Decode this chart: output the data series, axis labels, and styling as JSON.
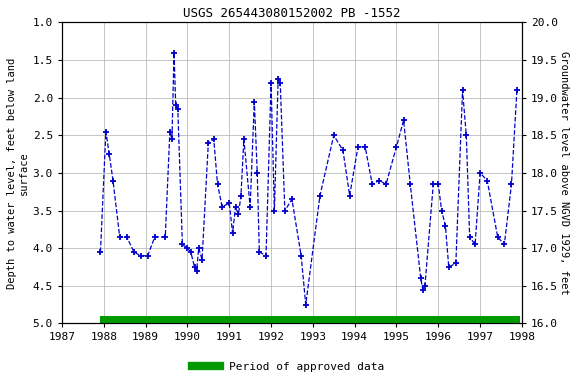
{
  "title": "USGS 265443080152002 PB -1552",
  "ylabel_left": "Depth to water level, feet below land\nsurface",
  "ylabel_right": "Groundwater level above NGVD 1929, feet",
  "xlim": [
    1987,
    1998
  ],
  "ylim_left": [
    5.0,
    1.0
  ],
  "ylim_right": [
    16.0,
    20.0
  ],
  "xticks": [
    1987,
    1988,
    1989,
    1990,
    1991,
    1992,
    1993,
    1994,
    1995,
    1996,
    1997,
    1998
  ],
  "yticks_left": [
    1.0,
    1.5,
    2.0,
    2.5,
    3.0,
    3.5,
    4.0,
    4.5,
    5.0
  ],
  "yticks_right": [
    16.0,
    16.5,
    17.0,
    17.5,
    18.0,
    18.5,
    19.0,
    19.5,
    20.0
  ],
  "line_color": "#0000cc",
  "marker_color": "#0000cc",
  "bar_color": "#009900",
  "background_color": "#ffffff",
  "data_x": [
    1987.92,
    1988.05,
    1988.13,
    1988.22,
    1988.38,
    1988.55,
    1988.72,
    1988.88,
    1989.05,
    1989.22,
    1989.47,
    1989.58,
    1989.63,
    1989.68,
    1989.72,
    1989.77,
    1989.88,
    1990.0,
    1990.08,
    1990.17,
    1990.22,
    1990.27,
    1990.35,
    1990.5,
    1990.63,
    1990.72,
    1990.83,
    1991.0,
    1991.08,
    1991.15,
    1991.22,
    1991.28,
    1991.35,
    1991.5,
    1991.6,
    1991.67,
    1991.72,
    1991.88,
    1992.0,
    1992.08,
    1992.17,
    1992.22,
    1992.33,
    1992.5,
    1992.72,
    1992.83,
    1993.17,
    1993.5,
    1993.72,
    1993.88,
    1994.08,
    1994.25,
    1994.42,
    1994.58,
    1994.75,
    1995.0,
    1995.17,
    1995.33,
    1995.58,
    1995.63,
    1995.68,
    1995.88,
    1996.0,
    1996.08,
    1996.17,
    1996.25,
    1996.42,
    1996.58,
    1996.67,
    1996.75,
    1996.88,
    1997.0,
    1997.17,
    1997.42,
    1997.58,
    1997.75,
    1997.88
  ],
  "data_y": [
    4.05,
    2.45,
    2.75,
    3.1,
    3.85,
    3.85,
    4.05,
    4.1,
    4.1,
    3.85,
    3.85,
    2.45,
    2.55,
    1.4,
    2.1,
    2.15,
    3.95,
    4.0,
    4.05,
    4.25,
    4.3,
    4.0,
    4.15,
    2.6,
    2.55,
    3.15,
    3.45,
    3.4,
    3.8,
    3.45,
    3.55,
    3.3,
    2.55,
    3.45,
    2.05,
    3.0,
    4.05,
    4.1,
    1.8,
    3.5,
    1.75,
    1.8,
    3.5,
    3.35,
    4.1,
    4.75,
    3.3,
    2.5,
    2.7,
    3.3,
    2.65,
    2.65,
    3.15,
    3.1,
    3.15,
    2.65,
    2.3,
    3.15,
    4.4,
    4.55,
    4.5,
    3.15,
    3.15,
    3.5,
    3.7,
    4.25,
    4.2,
    1.9,
    2.5,
    3.85,
    3.95,
    3.0,
    3.1,
    3.85,
    3.95,
    3.15,
    1.9
  ],
  "bar_xmin": 1987.92,
  "bar_xmax": 1997.95,
  "legend_label": "Period of approved data"
}
